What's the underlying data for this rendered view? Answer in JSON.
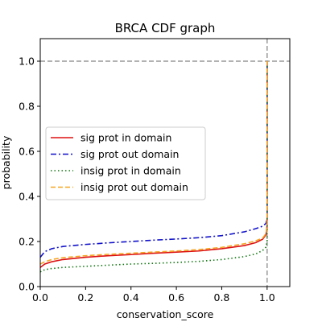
{
  "chart_data": {
    "type": "line",
    "title": "BRCA CDF graph",
    "xlabel": "conservation_score",
    "ylabel": "probability",
    "xlim": [
      0.0,
      1.1
    ],
    "ylim": [
      0.0,
      1.1
    ],
    "xticks": [
      "0.0",
      "0.2",
      "0.4",
      "0.6",
      "0.8",
      "1.0"
    ],
    "yticks": [
      "0.0",
      "0.2",
      "0.4",
      "0.6",
      "0.8",
      "1.0"
    ],
    "grid": false,
    "legend_position": "center-left",
    "reference_lines": {
      "horizontal_y": 1.0,
      "vertical_x": 1.0,
      "color": "#999999",
      "style": "dashed"
    },
    "series": [
      {
        "name": "sig prot in domain",
        "color": "#dd1111",
        "style": "solid",
        "x": [
          0.0,
          0.02,
          0.05,
          0.1,
          0.2,
          0.3,
          0.4,
          0.5,
          0.6,
          0.7,
          0.8,
          0.9,
          0.95,
          0.98,
          0.995,
          1.0,
          1.0
        ],
        "y": [
          0.085,
          0.1,
          0.11,
          0.12,
          0.13,
          0.137,
          0.142,
          0.148,
          0.153,
          0.158,
          0.168,
          0.182,
          0.195,
          0.21,
          0.23,
          0.27,
          1.0
        ]
      },
      {
        "name": "sig prot out domain",
        "color": "#1111cc",
        "style": "dashdot",
        "x": [
          0.0,
          0.02,
          0.05,
          0.1,
          0.2,
          0.3,
          0.4,
          0.5,
          0.6,
          0.7,
          0.8,
          0.9,
          0.95,
          0.98,
          0.995,
          1.0,
          1.0
        ],
        "y": [
          0.13,
          0.155,
          0.168,
          0.178,
          0.187,
          0.194,
          0.2,
          0.206,
          0.211,
          0.217,
          0.226,
          0.243,
          0.257,
          0.268,
          0.28,
          0.3,
          1.0
        ]
      },
      {
        "name": "insig prot in domain",
        "color": "#117711",
        "style": "dotted",
        "x": [
          0.0,
          0.02,
          0.05,
          0.1,
          0.2,
          0.3,
          0.4,
          0.5,
          0.6,
          0.7,
          0.8,
          0.9,
          0.95,
          0.98,
          0.995,
          1.0,
          1.0
        ],
        "y": [
          0.065,
          0.075,
          0.08,
          0.085,
          0.09,
          0.095,
          0.1,
          0.103,
          0.107,
          0.112,
          0.12,
          0.133,
          0.145,
          0.16,
          0.175,
          0.2,
          1.0
        ]
      },
      {
        "name": "insig prot out domain",
        "color": "#f5a623",
        "style": "dashed",
        "x": [
          0.0,
          0.02,
          0.05,
          0.1,
          0.2,
          0.3,
          0.4,
          0.5,
          0.6,
          0.7,
          0.8,
          0.9,
          0.95,
          0.98,
          0.995,
          1.0,
          1.0
        ],
        "y": [
          0.1,
          0.11,
          0.12,
          0.128,
          0.137,
          0.143,
          0.148,
          0.153,
          0.158,
          0.164,
          0.174,
          0.19,
          0.203,
          0.215,
          0.235,
          0.28,
          1.0
        ]
      }
    ]
  }
}
